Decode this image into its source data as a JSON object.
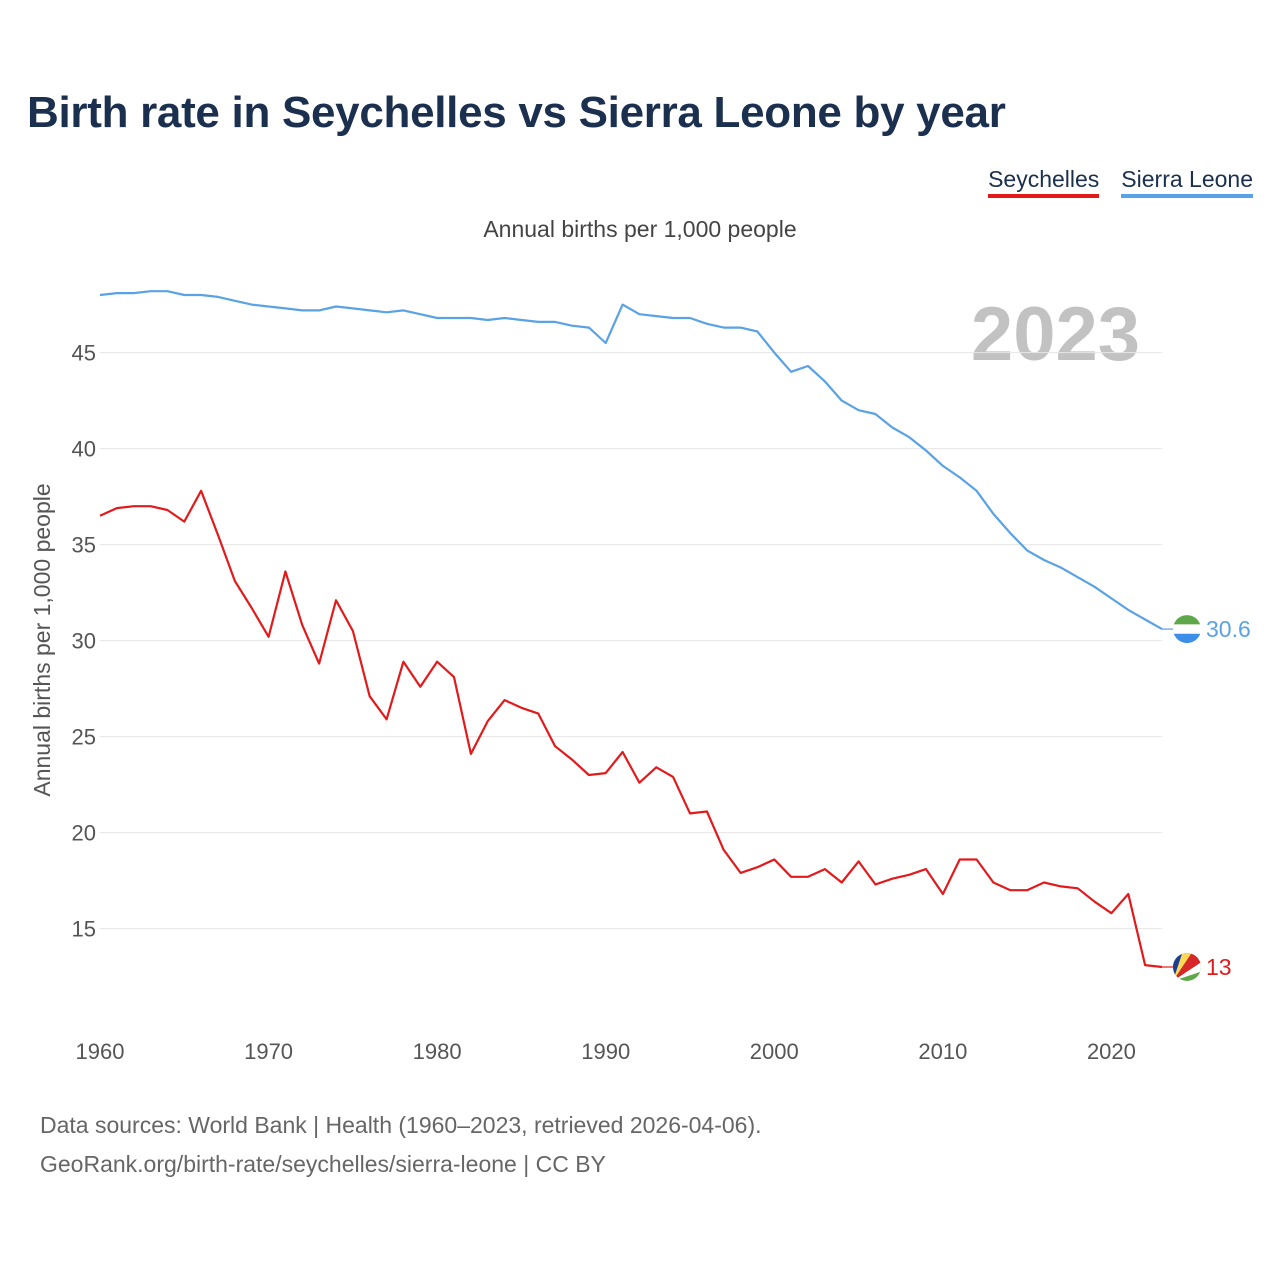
{
  "title": "Birth rate in Seychelles vs Sierra Leone by year",
  "subtitle": "Annual births per 1,000 people",
  "legend": [
    {
      "label": "Seychelles",
      "color": "#e31a1c"
    },
    {
      "label": "Sierra Leone",
      "color": "#5aa2e6"
    }
  ],
  "footer": {
    "line1": "Data sources: World Bank | Health (1960–2023, retrieved 2026-04-06).",
    "line2": "GeoRank.org/birth-rate/seychelles/sierra-leone | CC BY"
  },
  "chart_data": {
    "type": "line",
    "title": "Birth rate in Seychelles vs Sierra Leone by year",
    "ylabel": "Annual births per 1,000 people",
    "xlabel": "",
    "year_label": "2023",
    "xlim": [
      1960,
      2023
    ],
    "ylim": [
      10.5,
      48
    ],
    "x_ticks": [
      1960,
      1970,
      1980,
      1990,
      2000,
      2010,
      2020
    ],
    "y_ticks": [
      15,
      20,
      25,
      30,
      35,
      40,
      45
    ],
    "x": [
      1960,
      1961,
      1962,
      1963,
      1964,
      1965,
      1966,
      1967,
      1968,
      1969,
      1970,
      1971,
      1972,
      1973,
      1974,
      1975,
      1976,
      1977,
      1978,
      1979,
      1980,
      1981,
      1982,
      1983,
      1984,
      1985,
      1986,
      1987,
      1988,
      1989,
      1990,
      1991,
      1992,
      1993,
      1994,
      1995,
      1996,
      1997,
      1998,
      1999,
      2000,
      2001,
      2002,
      2003,
      2004,
      2005,
      2006,
      2007,
      2008,
      2009,
      2010,
      2011,
      2012,
      2013,
      2014,
      2015,
      2016,
      2017,
      2018,
      2019,
      2020,
      2021,
      2022,
      2023
    ],
    "series": [
      {
        "name": "Seychelles",
        "color": "#e31a1c",
        "end_label": "13",
        "values": [
          36.5,
          36.9,
          37.0,
          37.0,
          36.8,
          36.2,
          37.8,
          35.5,
          33.1,
          31.7,
          30.2,
          33.6,
          30.8,
          28.8,
          32.1,
          30.5,
          27.1,
          25.9,
          28.9,
          27.6,
          28.9,
          28.1,
          24.1,
          25.8,
          26.9,
          26.5,
          26.2,
          24.5,
          23.8,
          23.0,
          23.1,
          24.2,
          22.6,
          23.4,
          22.9,
          21.0,
          21.1,
          19.1,
          17.9,
          18.2,
          18.6,
          17.7,
          17.7,
          18.1,
          17.4,
          18.5,
          17.3,
          17.6,
          17.8,
          18.1,
          16.8,
          18.6,
          18.6,
          17.4,
          17.0,
          17.0,
          17.4,
          17.2,
          17.1,
          16.4,
          15.8,
          16.8,
          13.1,
          13.0
        ]
      },
      {
        "name": "Sierra Leone",
        "color": "#5aa2e6",
        "end_label": "30.6",
        "values": [
          48.0,
          48.1,
          48.1,
          48.2,
          48.2,
          48.0,
          48.0,
          47.9,
          47.7,
          47.5,
          47.4,
          47.3,
          47.2,
          47.2,
          47.4,
          47.3,
          47.2,
          47.1,
          47.2,
          47.0,
          46.8,
          46.8,
          46.8,
          46.7,
          46.8,
          46.7,
          46.6,
          46.6,
          46.4,
          46.3,
          45.5,
          47.5,
          47.0,
          46.9,
          46.8,
          46.8,
          46.5,
          46.3,
          46.3,
          46.1,
          45.0,
          44.0,
          44.3,
          43.5,
          42.5,
          42.0,
          41.8,
          41.1,
          40.6,
          39.9,
          39.1,
          38.5,
          37.8,
          36.6,
          35.6,
          34.7,
          34.2,
          33.8,
          33.3,
          32.8,
          32.2,
          31.6,
          31.1,
          30.6
        ]
      }
    ]
  }
}
